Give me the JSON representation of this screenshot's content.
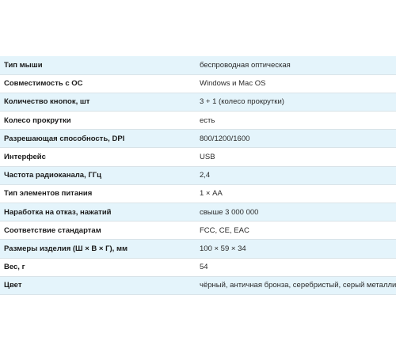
{
  "specs": [
    {
      "name": "Тип мыши",
      "value": "беспроводная оптическая"
    },
    {
      "name": "Совместимость с ОС",
      "value": "Windows и Mac OS"
    },
    {
      "name": "Количество кнопок, шт",
      "value": "3 + 1 (колесо прокрутки)"
    },
    {
      "name": "Колесо прокрутки",
      "value": "есть"
    },
    {
      "name": "Разрешающая способность, DPI",
      "value": "800/1200/1600"
    },
    {
      "name": "Интерфейс",
      "value": "USB"
    },
    {
      "name": "Частота радиоканала, ГГц",
      "value": "2,4"
    },
    {
      "name": "Тип элементов питания",
      "value": "1 × АА"
    },
    {
      "name": "Наработка на отказ, нажатий",
      "value": "свыше 3 000 000"
    },
    {
      "name": "Соответствие стандартам",
      "value": "FCC, CE, EAC"
    },
    {
      "name": "Размеры изделия (Ш × В × Г), мм",
      "value": "100 × 59 × 34"
    },
    {
      "name": "Вес, г",
      "value": "54"
    },
    {
      "name": "Цвет",
      "value": "чёрный, античная бронза, серебристый, серый металлик"
    }
  ]
}
